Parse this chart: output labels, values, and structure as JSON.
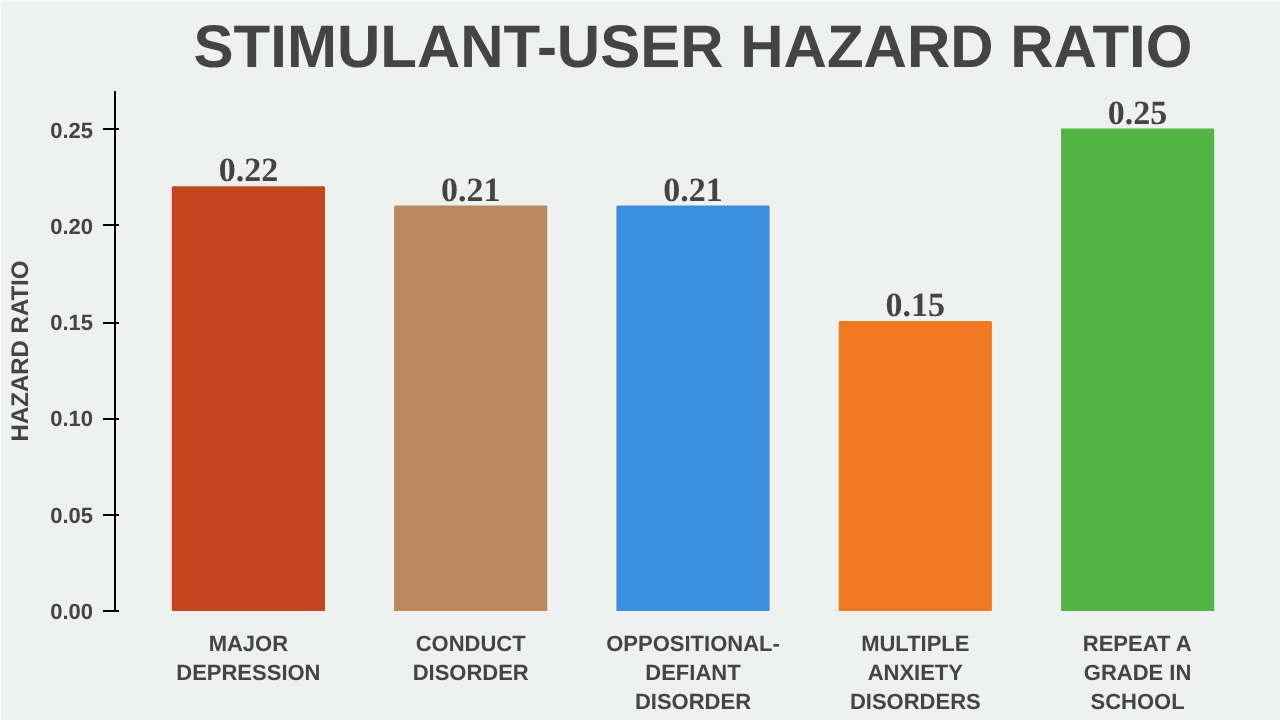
{
  "chart_data": {
    "type": "bar",
    "title": "STIMULANT-USER HAZARD RATIO",
    "ylabel": "HAZARD RATIO",
    "categories": [
      "MAJOR\nDEPRESSION",
      "CONDUCT\nDISORDER",
      "OPPOSITIONAL-\nDEFIANT\nDISORDER",
      "MULTIPLE\nANXIETY\nDISORDERS",
      "REPEAT A\nGRADE IN\nSCHOOL"
    ],
    "values": [
      0.22,
      0.21,
      0.21,
      0.15,
      0.25
    ],
    "colors": [
      "#c4461e",
      "#b98a5e",
      "#3c8fdc",
      "#f07a22",
      "#52b442"
    ],
    "ylim": [
      0,
      0.27
    ],
    "yticks": [
      {
        "value": 0,
        "label": "0.00"
      },
      {
        "value": 0.05,
        "label": "0.05"
      },
      {
        "value": 0.1,
        "label": "0.10"
      },
      {
        "value": 0.15,
        "label": "0.15"
      },
      {
        "value": 0.2,
        "label": "0.20"
      },
      {
        "value": 0.25,
        "label": "0.25"
      }
    ],
    "data_labels": true,
    "grid": false
  }
}
